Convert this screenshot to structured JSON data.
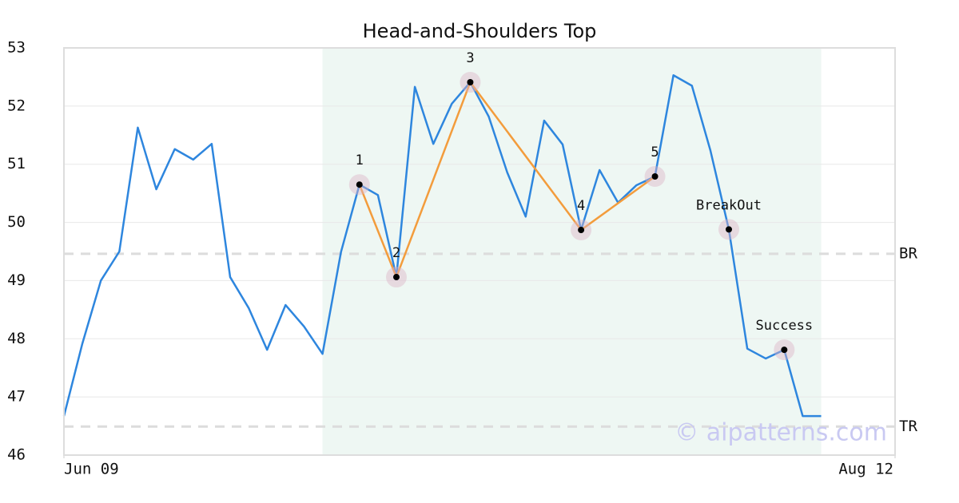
{
  "chart_data": {
    "type": "line",
    "title": "Head-and-Shoulders Top",
    "x": [
      0,
      1,
      2,
      3,
      4,
      5,
      6,
      7,
      8,
      9,
      10,
      11,
      12,
      13,
      14,
      15,
      16,
      17,
      18,
      19,
      20,
      21,
      22,
      23,
      24,
      25,
      26,
      27,
      28,
      29,
      30,
      31,
      32,
      33,
      34,
      35,
      36,
      37,
      38,
      39,
      40,
      41
    ],
    "series": [
      {
        "color": "#2e86de",
        "values": [
          46.67,
          47.92,
          49.0,
          49.5,
          51.63,
          50.57,
          51.26,
          51.08,
          51.35,
          49.06,
          48.53,
          47.81,
          48.58,
          48.21,
          47.74,
          49.49,
          50.65,
          50.47,
          49.06,
          52.33,
          51.35,
          52.04,
          52.41,
          51.82,
          50.86,
          50.1,
          51.75,
          51.34,
          49.87,
          50.9,
          50.34,
          50.64,
          50.79,
          52.53,
          52.35,
          51.24,
          49.88,
          47.83,
          47.66,
          47.81,
          46.67,
          46.67
        ]
      }
    ],
    "xlim": [
      0,
      45
    ],
    "ylim": [
      46,
      53
    ],
    "xticks": [
      {
        "value": 0,
        "label": "Jun 09"
      },
      {
        "value": 45,
        "label": "Aug 12"
      }
    ],
    "yticks": [
      46,
      47,
      48,
      49,
      50,
      51,
      52,
      53
    ],
    "grid": true,
    "highlight": [
      14,
      41
    ],
    "highlight_color": "#eef7f3",
    "levels": [
      {
        "label": "BR",
        "value": 49.46
      },
      {
        "label": "TR",
        "value": 46.49
      }
    ],
    "pattern_color": "#f39c3c",
    "annotations": [
      {
        "label": "1",
        "x": 16,
        "y": 50.65,
        "connected": true
      },
      {
        "label": "2",
        "x": 18,
        "y": 49.06,
        "connected": true
      },
      {
        "label": "3",
        "x": 22,
        "y": 52.41,
        "connected": true
      },
      {
        "label": "4",
        "x": 28,
        "y": 49.87,
        "connected": true
      },
      {
        "label": "5",
        "x": 32,
        "y": 50.79,
        "connected": true
      },
      {
        "label": "BreakOut",
        "x": 36,
        "y": 49.88,
        "connected": false
      },
      {
        "label": "Success",
        "x": 39,
        "y": 47.81,
        "connected": false
      }
    ],
    "watermark": "© aipatterns.com"
  }
}
